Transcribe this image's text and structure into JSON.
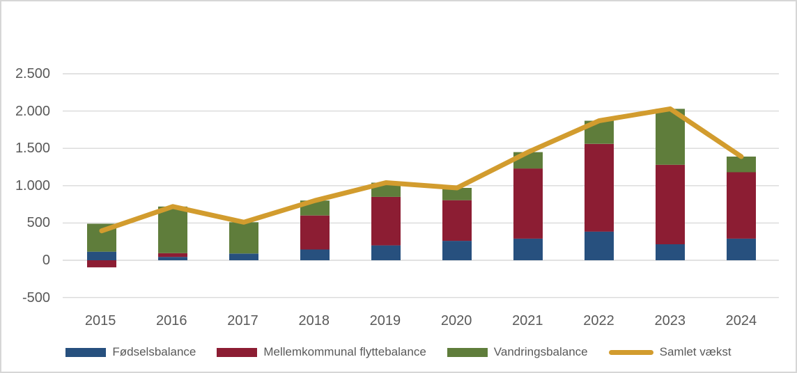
{
  "chart_data": {
    "type": "bar",
    "subtype": "stacked-bars-with-total-line",
    "title": "",
    "xlabel": "",
    "ylabel": "",
    "categories": [
      "2015",
      "2016",
      "2017",
      "2018",
      "2019",
      "2020",
      "2021",
      "2022",
      "2023",
      "2024"
    ],
    "series": [
      {
        "name": "Fødselsbalance",
        "type": "bar",
        "color": "#27507E",
        "values": [
          115,
          45,
          90,
          145,
          200,
          260,
          290,
          385,
          215,
          290
        ]
      },
      {
        "name": "Mellemkommunal flyttebalance",
        "type": "bar",
        "color": "#8C1D33",
        "values": [
          -95,
          50,
          0,
          455,
          650,
          545,
          940,
          1175,
          1065,
          890
        ]
      },
      {
        "name": "Vandringsbalance",
        "type": "bar",
        "color": "#5F7D3B",
        "values": [
          375,
          625,
          420,
          200,
          190,
          165,
          220,
          310,
          750,
          210
        ]
      },
      {
        "name": "Samlet vækst",
        "type": "line",
        "color": "#D29C2E",
        "values": [
          395,
          720,
          510,
          800,
          1040,
          970,
          1450,
          1870,
          2030,
          1390
        ]
      }
    ],
    "stacked": true,
    "ylim": [
      -500,
      2500
    ],
    "ytick_values": [
      2500,
      2000,
      1500,
      1000,
      500,
      0,
      -500
    ],
    "ytick_labels": [
      "2.500",
      "2.000",
      "1.500",
      "1.000",
      "500",
      "0",
      "-500"
    ],
    "grid": true,
    "legend_position": "bottom",
    "colors": {
      "gridline": "#D9D9D9",
      "axis_text": "#595959",
      "background": "#FFFFFF"
    }
  }
}
